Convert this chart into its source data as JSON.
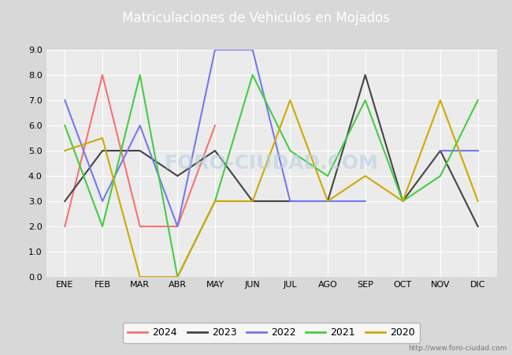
{
  "title": "Matriculaciones de Vehiculos en Mojados",
  "title_bg_color": "#5aabdc",
  "title_font_color": "white",
  "ylim": [
    0.0,
    9.0
  ],
  "yticks": [
    0.0,
    1.0,
    2.0,
    3.0,
    4.0,
    5.0,
    6.0,
    7.0,
    8.0,
    9.0
  ],
  "months": [
    "ENE",
    "FEB",
    "MAR",
    "ABR",
    "MAY",
    "JUN",
    "JUL",
    "AGO",
    "SEP",
    "OCT",
    "NOV",
    "DIC"
  ],
  "watermark": "http://www.foro-ciudad.com",
  "series": {
    "2024": {
      "color": "#f87272",
      "data": [
        2.0,
        8.0,
        2.0,
        2.0,
        6.0,
        null,
        null,
        null,
        null,
        null,
        null,
        null
      ]
    },
    "2023": {
      "color": "#444444",
      "data": [
        3.0,
        5.0,
        5.0,
        4.0,
        5.0,
        3.0,
        3.0,
        3.0,
        8.0,
        3.0,
        5.0,
        2.0
      ]
    },
    "2022": {
      "color": "#7777ee",
      "data": [
        7.0,
        3.0,
        6.0,
        2.0,
        9.0,
        9.0,
        3.0,
        3.0,
        3.0,
        null,
        5.0,
        5.0
      ]
    },
    "2021": {
      "color": "#44cc44",
      "data": [
        6.0,
        2.0,
        8.0,
        0.0,
        3.0,
        8.0,
        5.0,
        4.0,
        7.0,
        3.0,
        4.0,
        7.0
      ]
    },
    "2020": {
      "color": "#ccaa00",
      "data": [
        5.0,
        5.5,
        0.0,
        0.0,
        3.0,
        3.0,
        7.0,
        3.0,
        4.0,
        3.0,
        7.0,
        3.0
      ]
    }
  },
  "legend_order": [
    "2024",
    "2023",
    "2022",
    "2021",
    "2020"
  ],
  "fig_bg_color": "#d8d8d8",
  "plot_bg_color": "#ebebeb",
  "grid_color": "white",
  "font_family": "DejaVu Sans",
  "title_fontsize": 12,
  "tick_fontsize": 8,
  "legend_fontsize": 9
}
